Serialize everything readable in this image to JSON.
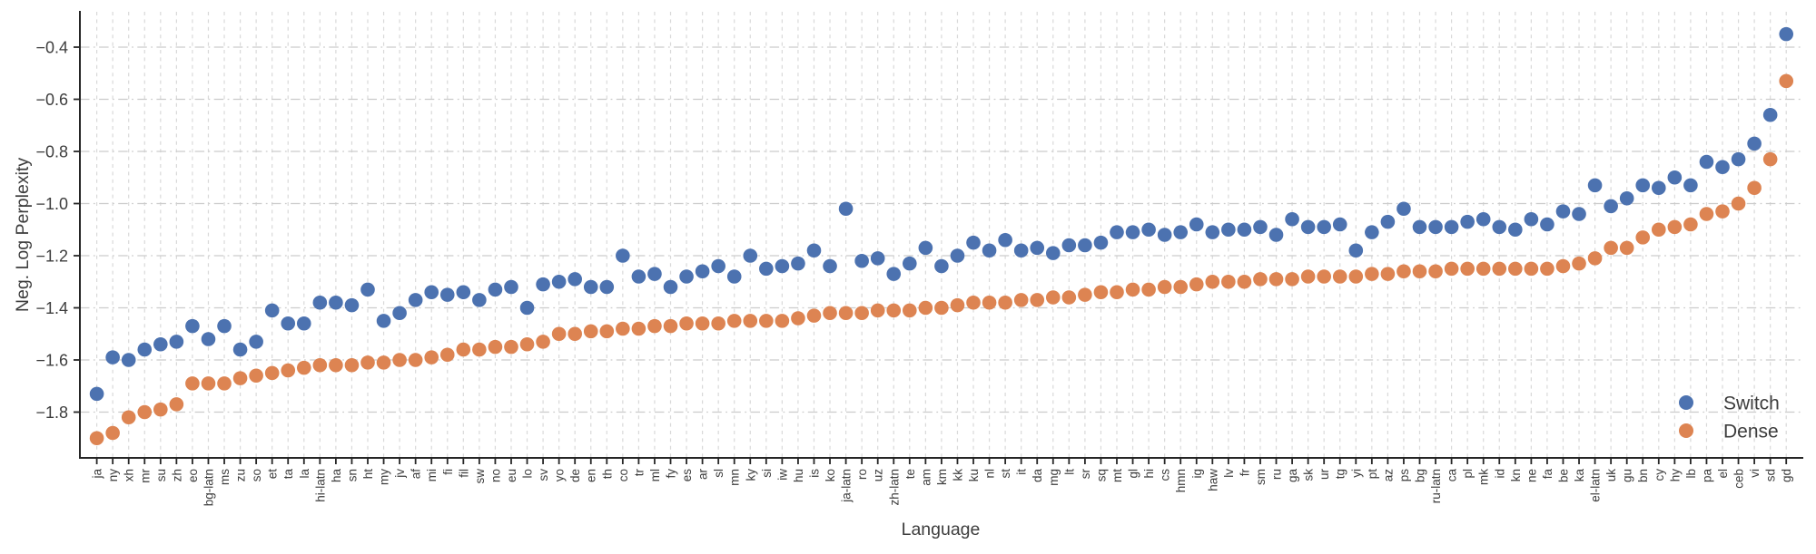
{
  "chart_data": {
    "type": "scatter",
    "title": "",
    "xlabel": "Language",
    "ylabel": "Neg. Log Perplexity",
    "grid": true,
    "legend_position": "lower right",
    "ylim": [
      -1.98,
      -0.26
    ],
    "yticks": [
      -0.4,
      -0.6,
      -0.8,
      -1.0,
      -1.2,
      -1.4,
      -1.6,
      -1.8
    ],
    "ytick_labels": [
      "−0.4",
      "−0.6",
      "−0.8",
      "−1.0",
      "−1.2",
      "−1.4",
      "−1.6",
      "−1.8"
    ],
    "categories": [
      "ja",
      "ny",
      "xh",
      "mr",
      "su",
      "zh",
      "eo",
      "bg-latn",
      "ms",
      "zu",
      "so",
      "et",
      "ta",
      "la",
      "hi-latn",
      "ha",
      "sn",
      "ht",
      "my",
      "jv",
      "af",
      "mi",
      "fi",
      "fil",
      "sw",
      "no",
      "eu",
      "lo",
      "sv",
      "yo",
      "de",
      "en",
      "th",
      "co",
      "tr",
      "ml",
      "fy",
      "es",
      "ar",
      "sl",
      "mn",
      "ky",
      "si",
      "iw",
      "hu",
      "is",
      "ko",
      "ja-latn",
      "ro",
      "uz",
      "zh-latn",
      "te",
      "am",
      "km",
      "kk",
      "ku",
      "nl",
      "st",
      "it",
      "da",
      "mg",
      "lt",
      "sr",
      "sq",
      "mt",
      "gl",
      "hi",
      "cs",
      "hmn",
      "ig",
      "haw",
      "lv",
      "fr",
      "sm",
      "ru",
      "ga",
      "sk",
      "ur",
      "tg",
      "yi",
      "pt",
      "az",
      "ps",
      "bg",
      "ru-latn",
      "ca",
      "pl",
      "mk",
      "id",
      "kn",
      "ne",
      "fa",
      "be",
      "ka",
      "el-latn",
      "uk",
      "gu",
      "bn",
      "cy",
      "hy",
      "lb",
      "pa",
      "el",
      "ceb",
      "vi",
      "sd",
      "gd"
    ],
    "series": [
      {
        "name": "Switch",
        "color": "#4C72B0",
        "values": [
          -1.73,
          -1.59,
          -1.6,
          -1.56,
          -1.54,
          -1.53,
          -1.47,
          -1.52,
          -1.47,
          -1.56,
          -1.53,
          -1.41,
          -1.46,
          -1.46,
          -1.38,
          -1.38,
          -1.39,
          -1.33,
          -1.45,
          -1.42,
          -1.37,
          -1.34,
          -1.35,
          -1.34,
          -1.37,
          -1.33,
          -1.32,
          -1.4,
          -1.31,
          -1.3,
          -1.29,
          -1.32,
          -1.32,
          -1.2,
          -1.28,
          -1.27,
          -1.32,
          -1.28,
          -1.26,
          -1.24,
          -1.28,
          -1.2,
          -1.25,
          -1.24,
          -1.23,
          -1.18,
          -1.24,
          -1.02,
          -1.22,
          -1.21,
          -1.27,
          -1.23,
          -1.17,
          -1.24,
          -1.2,
          -1.15,
          -1.18,
          -1.14,
          -1.18,
          -1.17,
          -1.19,
          -1.16,
          -1.16,
          -1.15,
          -1.11,
          -1.11,
          -1.1,
          -1.12,
          -1.11,
          -1.08,
          -1.11,
          -1.1,
          -1.1,
          -1.09,
          -1.12,
          -1.06,
          -1.09,
          -1.09,
          -1.08,
          -1.18,
          -1.11,
          -1.07,
          -1.02,
          -1.09,
          -1.09,
          -1.09,
          -1.07,
          -1.06,
          -1.09,
          -1.1,
          -1.06,
          -1.08,
          -1.03,
          -1.04,
          -0.93,
          -1.01,
          -0.98,
          -0.93,
          -0.94,
          -0.9,
          -0.93,
          -0.84,
          -0.86,
          -0.83,
          -0.77,
          -0.66,
          -0.35
        ]
      },
      {
        "name": "Dense",
        "color": "#DD8452",
        "values": [
          -1.9,
          -1.88,
          -1.82,
          -1.8,
          -1.79,
          -1.77,
          -1.69,
          -1.69,
          -1.69,
          -1.67,
          -1.66,
          -1.65,
          -1.64,
          -1.63,
          -1.62,
          -1.62,
          -1.62,
          -1.61,
          -1.61,
          -1.6,
          -1.6,
          -1.59,
          -1.58,
          -1.56,
          -1.56,
          -1.55,
          -1.55,
          -1.54,
          -1.53,
          -1.5,
          -1.5,
          -1.49,
          -1.49,
          -1.48,
          -1.48,
          -1.47,
          -1.47,
          -1.46,
          -1.46,
          -1.46,
          -1.45,
          -1.45,
          -1.45,
          -1.45,
          -1.44,
          -1.43,
          -1.42,
          -1.42,
          -1.42,
          -1.41,
          -1.41,
          -1.41,
          -1.4,
          -1.4,
          -1.39,
          -1.38,
          -1.38,
          -1.38,
          -1.37,
          -1.37,
          -1.36,
          -1.36,
          -1.35,
          -1.34,
          -1.34,
          -1.33,
          -1.33,
          -1.32,
          -1.32,
          -1.31,
          -1.3,
          -1.3,
          -1.3,
          -1.29,
          -1.29,
          -1.29,
          -1.28,
          -1.28,
          -1.28,
          -1.28,
          -1.27,
          -1.27,
          -1.26,
          -1.26,
          -1.26,
          -1.25,
          -1.25,
          -1.25,
          -1.25,
          -1.25,
          -1.25,
          -1.25,
          -1.24,
          -1.23,
          -1.21,
          -1.17,
          -1.17,
          -1.13,
          -1.1,
          -1.09,
          -1.08,
          -1.04,
          -1.03,
          -1.0,
          -0.94,
          -0.83,
          -0.53
        ]
      }
    ]
  }
}
